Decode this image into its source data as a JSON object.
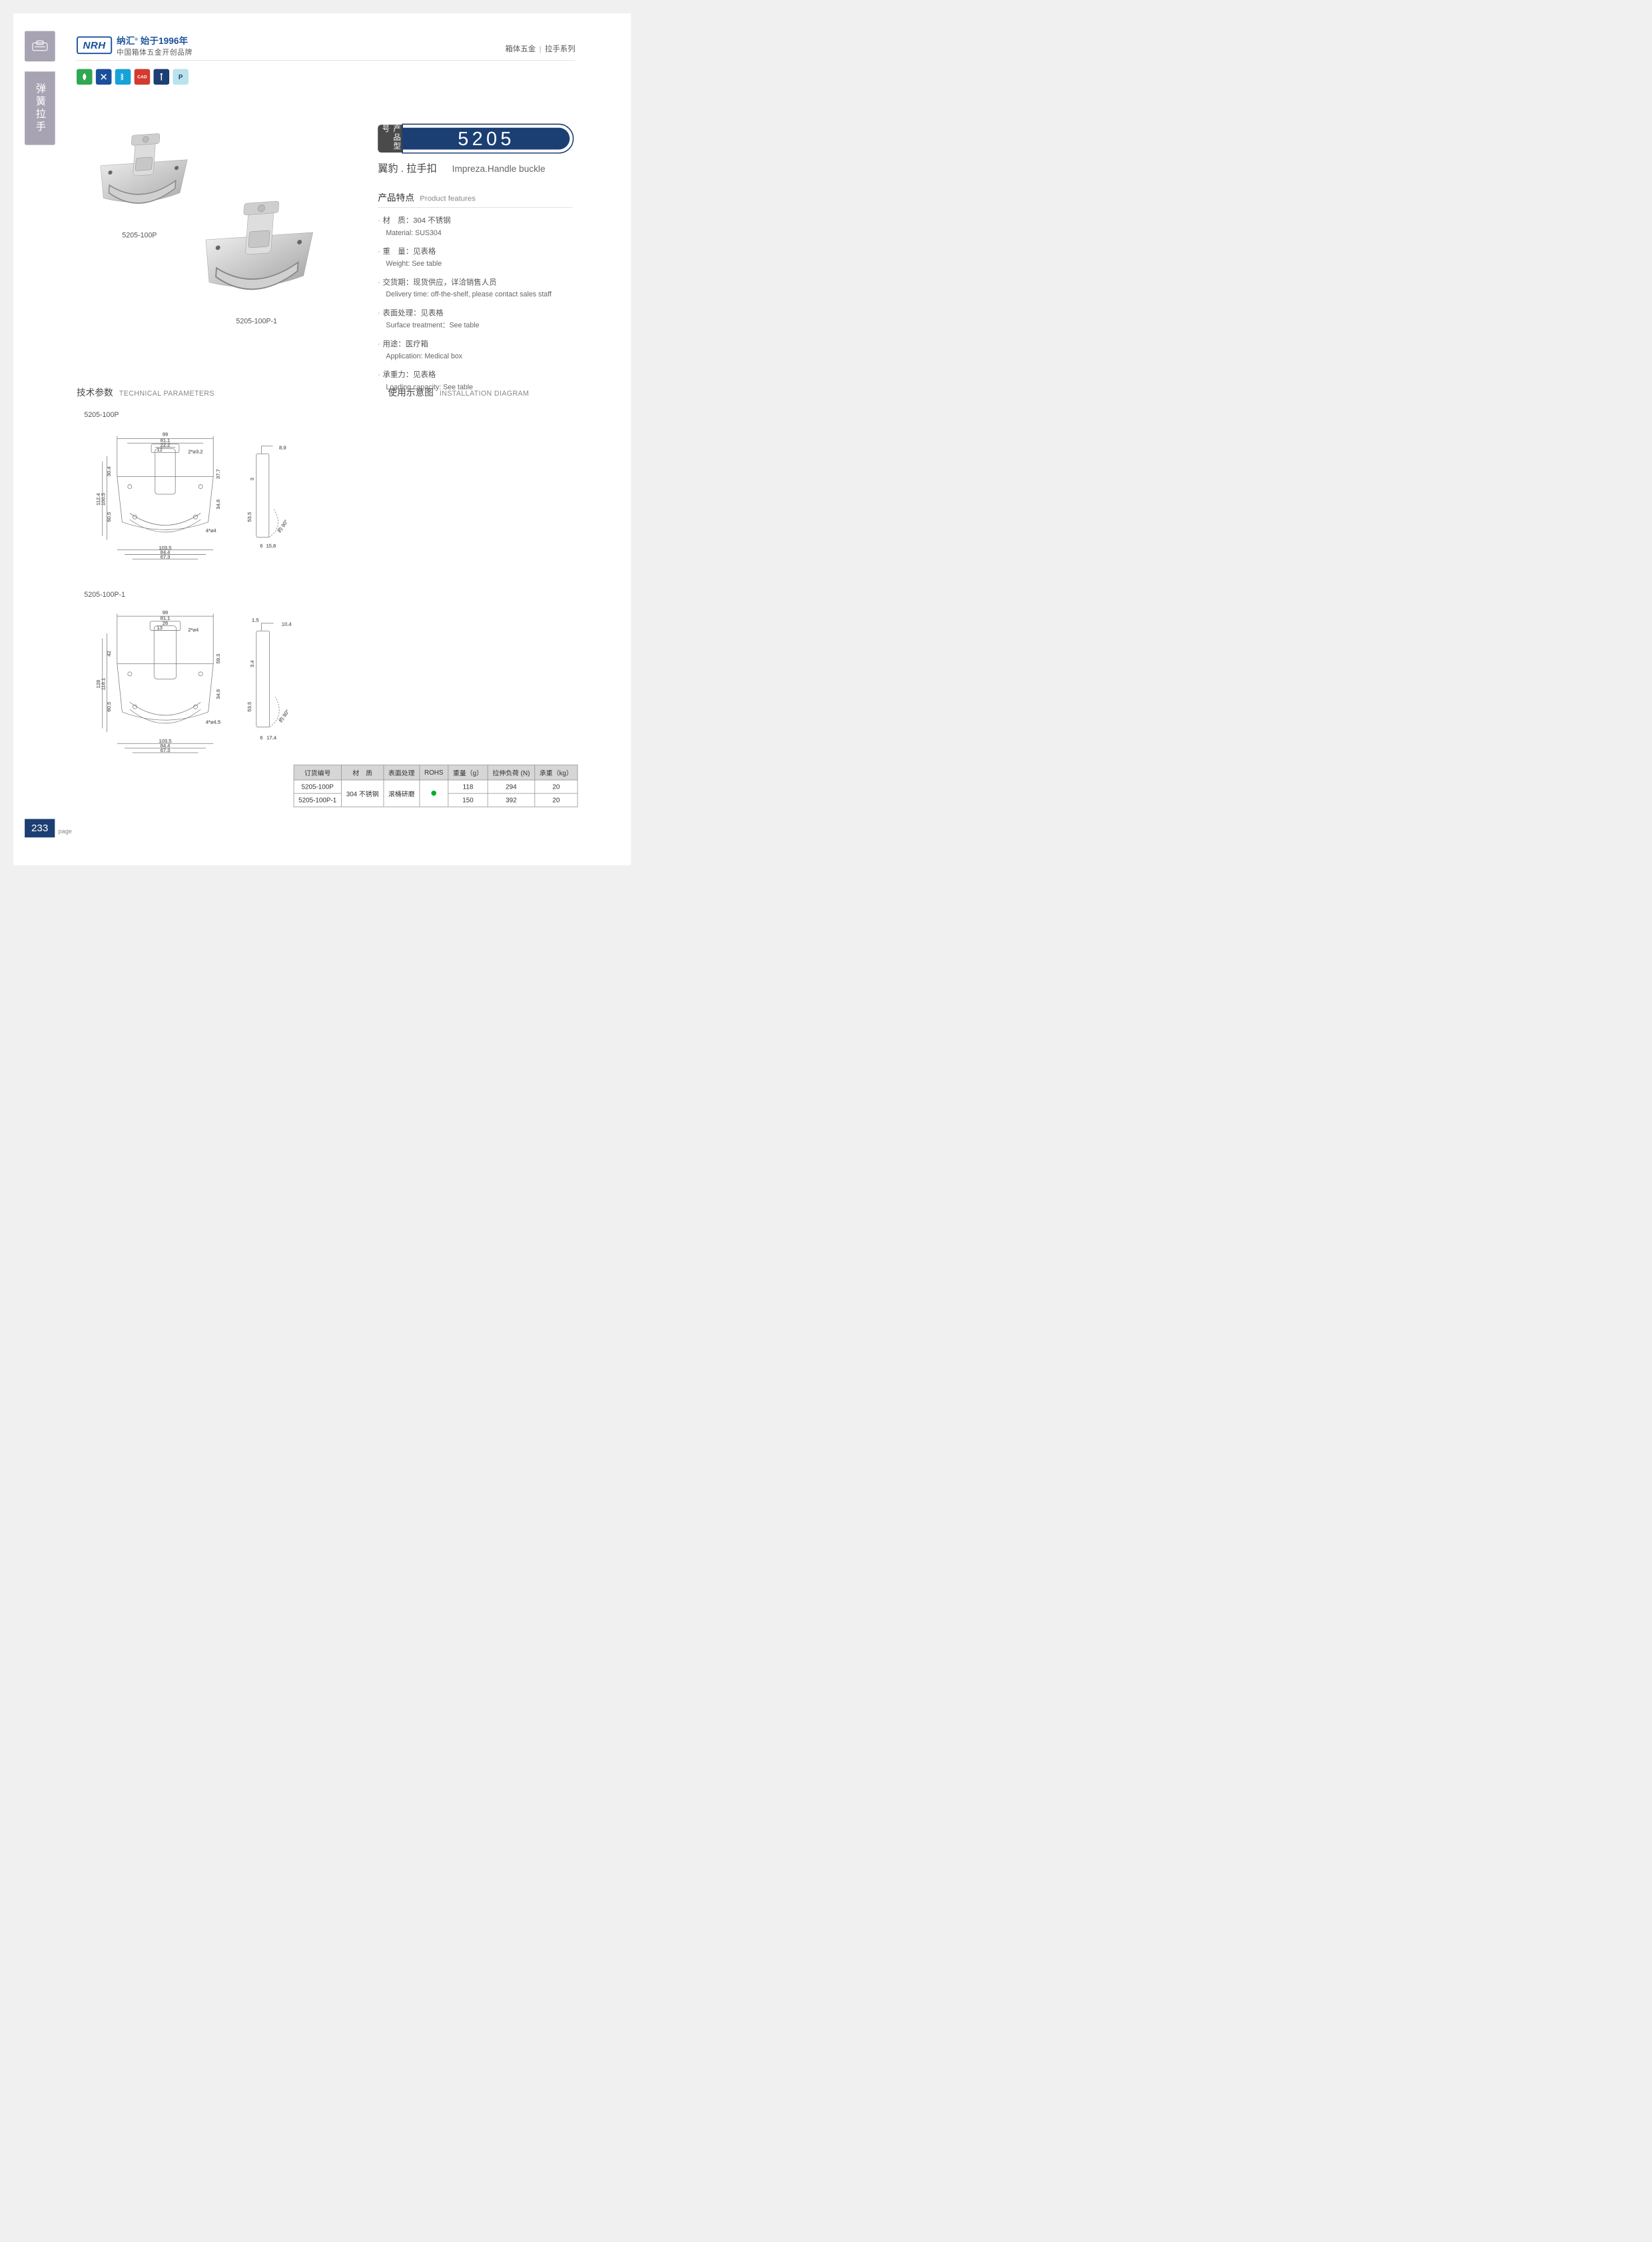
{
  "side": {
    "category": "弹簧拉手"
  },
  "header": {
    "logo_mark": "NRH",
    "logo_line1_a": "纳汇",
    "logo_line1_sup": "®",
    "logo_line1_b": "始于1996年",
    "logo_line2": "中国箱体五金开创品牌",
    "crumb_a": "箱体五金",
    "crumb_b": "拉手系列"
  },
  "icons": [
    {
      "bg": "#2fa84f",
      "glyph": "leaf"
    },
    {
      "bg": "#1a4f9c",
      "glyph": "tools"
    },
    {
      "bg": "#17a2d9",
      "glyph": "spring"
    },
    {
      "bg": "#d43a2f",
      "glyph": "CAD"
    },
    {
      "bg": "#1c3f73",
      "glyph": "screw"
    },
    {
      "bg": "#b9e3ec",
      "glyph": "P",
      "fg": "#1c3f73"
    }
  ],
  "products": {
    "p1_label": "5205-100P",
    "p2_label": "5205-100P-1"
  },
  "model": {
    "tag": "产品型号",
    "number": "5205",
    "sub_cn": "翼豹 . 拉手扣",
    "sub_en": "Impreza.Handle buckle"
  },
  "features": {
    "title_cn": "产品特点",
    "title_en": "Product features",
    "items": [
      {
        "cn": "材　质：304 不锈钢",
        "en": "Material: SUS304"
      },
      {
        "cn": "重　量：见表格",
        "en": "Weight: See table"
      },
      {
        "cn": "交货期：现货供应，详洽销售人员",
        "en": "Delivery time: off-the-shelf, please contact sales staff"
      },
      {
        "cn": "表面处理：见表格",
        "en": "Surface treatment：See table"
      },
      {
        "cn": "用途：医疗箱",
        "en": "Application: Medical box"
      },
      {
        "cn": "承重力：见表格",
        "en": "Loading capacity: See table"
      }
    ]
  },
  "sections": {
    "tech_cn": "技术参数",
    "tech_en": "TECHNICAL PARAMETERS",
    "inst_cn": "使用示意图",
    "inst_en": "INSTALLATION DIAGRAM"
  },
  "tech_labels": {
    "d1": "5205-100P",
    "d2": "5205-100P-1"
  },
  "dims": {
    "d1": {
      "top": [
        "99",
        "81.1",
        "22.2",
        "12",
        "2*⌀3.2"
      ],
      "leftV": [
        "112.4",
        "100.5",
        "60.5",
        "30.4"
      ],
      "rightV": [
        "37.7",
        "34.6",
        "53.5"
      ],
      "bottom": [
        "67.3",
        "84.4",
        "103.5",
        "4*⌀4"
      ],
      "side": [
        "8.9",
        "3",
        "6",
        "15.8",
        "约 90°"
      ]
    },
    "d2": {
      "top": [
        "99",
        "81.1",
        "26",
        "13",
        "2*⌀4"
      ],
      "leftV": [
        "128",
        "116.1",
        "60.5",
        "42"
      ],
      "rightV": [
        "59.3",
        "34.6",
        "53.5"
      ],
      "bottom": [
        "67.3",
        "84.4",
        "103.5",
        "4*⌀4.5"
      ],
      "side": [
        "1.5",
        "10.4",
        "3.4",
        "6",
        "17.4",
        "约 90°"
      ]
    }
  },
  "table": {
    "headers": [
      "订货编号",
      "材　质",
      "表面处理",
      "ROHS",
      "重量（g）",
      "拉伸负荷 (N)",
      "承重（kg）"
    ],
    "rows": [
      {
        "code": "5205-100P",
        "material": "304 不锈钢",
        "surface": "滚桶研磨",
        "rohs": true,
        "weight": "118",
        "load": "294",
        "cap": "20"
      },
      {
        "code": "5205-100P-1",
        "material": "304 不锈钢",
        "surface": "滚桶研磨",
        "rohs": true,
        "weight": "150",
        "load": "392",
        "cap": "20"
      }
    ]
  },
  "footer": {
    "pageno": "233",
    "pageword": "page"
  },
  "colors": {
    "brand_blue": "#1c3f73",
    "side_gray": "#a7a3b3",
    "line": "#d9d9d9",
    "text": "#444444"
  }
}
